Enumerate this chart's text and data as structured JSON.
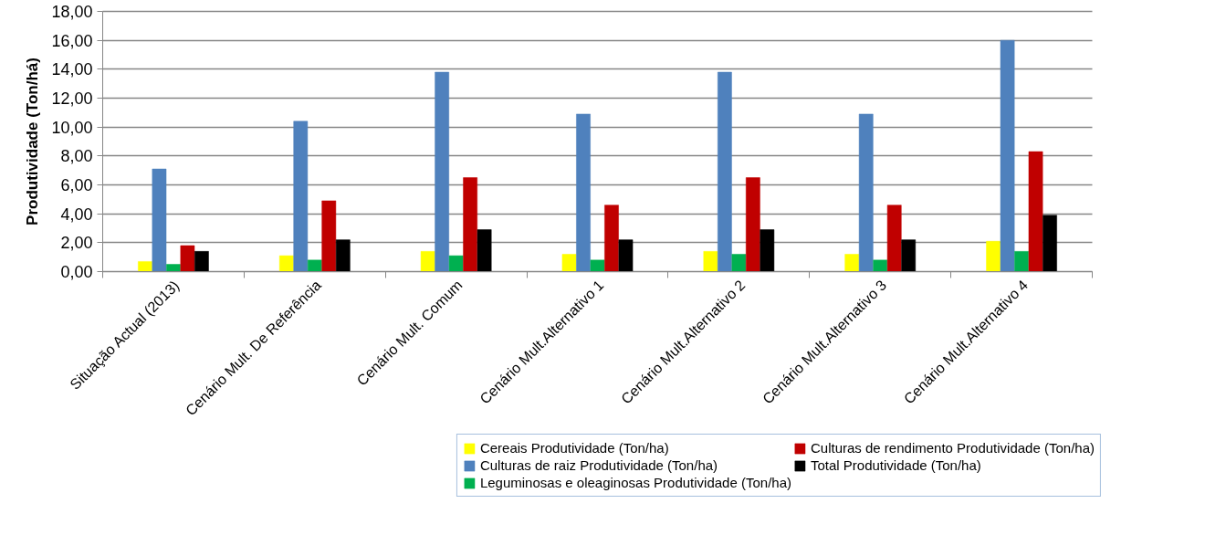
{
  "chart_data": {
    "type": "bar",
    "ylabel": "Produtividade (Ton/há)",
    "categories": [
      "Situação Actual (2013)",
      "Cenário Mult. De Referência",
      "Cenário Mult. Comum",
      "Cenário Mult.Alternativo 1",
      "Cenário Mult.Alternativo 2",
      "Cenário Mult.Alternativo 3",
      "Cenário Mult.Alternativo 4"
    ],
    "series": [
      {
        "name": "Cereais Produtividade (Ton/ha)",
        "color": "#ffff00",
        "values": [
          0.7,
          1.1,
          1.4,
          1.2,
          1.4,
          1.2,
          2.1
        ]
      },
      {
        "name": "Culturas de raiz Produtividade (Ton/ha)",
        "color": "#4f81bd",
        "values": [
          7.1,
          10.4,
          13.8,
          10.9,
          13.8,
          10.9,
          16.0
        ]
      },
      {
        "name": "Leguminosas e oleaginosas Produtividade (Ton/ha)",
        "color": "#00b050",
        "values": [
          0.5,
          0.8,
          1.1,
          0.8,
          1.2,
          0.8,
          1.4
        ]
      },
      {
        "name": "Culturas de rendimento Produtividade (Ton/ha)",
        "color": "#c00000",
        "values": [
          1.8,
          4.9,
          6.5,
          4.6,
          6.5,
          4.6,
          8.3
        ]
      },
      {
        "name": "Total Produtividade (Ton/ha)",
        "color": "#000000",
        "values": [
          1.4,
          2.2,
          2.9,
          2.2,
          2.9,
          2.2,
          3.9
        ]
      }
    ],
    "ylim": [
      0,
      18
    ],
    "yticks": [
      {
        "value": 0,
        "label": "0,00"
      },
      {
        "value": 2,
        "label": "2,00"
      },
      {
        "value": 4,
        "label": "4,00"
      },
      {
        "value": 6,
        "label": "6,00"
      },
      {
        "value": 8,
        "label": "8,00"
      },
      {
        "value": 10,
        "label": "10,00"
      },
      {
        "value": 12,
        "label": "12,00"
      },
      {
        "value": 14,
        "label": "14,00"
      },
      {
        "value": 16,
        "label": "16,00"
      },
      {
        "value": 18,
        "label": "18,00"
      }
    ],
    "grid": "y",
    "legend": "bottom right"
  }
}
